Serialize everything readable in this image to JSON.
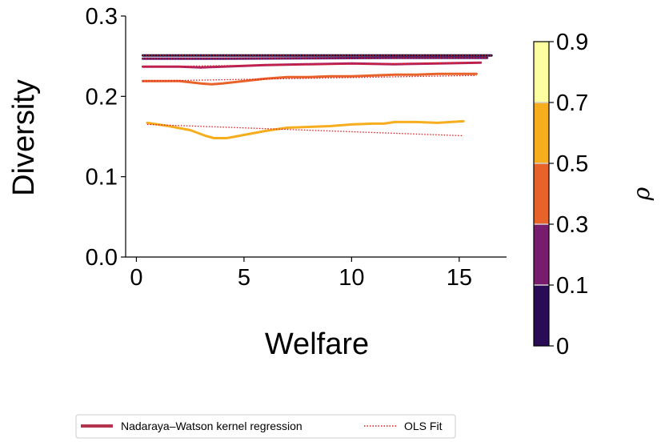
{
  "chart_data": {
    "type": "line",
    "xlabel": "Welfare",
    "ylabel": "Diversity",
    "xlim": [
      -0.5,
      17.2
    ],
    "ylim": [
      0.0,
      0.3
    ],
    "x_ticks": [
      0,
      5,
      10,
      15
    ],
    "x_tick_labels": [
      "0",
      "5",
      "10",
      "15"
    ],
    "y_ticks": [
      0.0,
      0.1,
      0.2,
      0.3
    ],
    "y_tick_labels": [
      "0.0",
      "0.1",
      "0.2",
      "0.3"
    ],
    "grid": false,
    "series": [
      {
        "rho": "0",
        "color": "#1c0a3e",
        "nw": {
          "x": [
            0.3,
            4,
            8,
            12,
            16.5
          ],
          "y": [
            0.251,
            0.251,
            0.251,
            0.251,
            0.251
          ]
        },
        "ols": {
          "x": [
            0.3,
            16.5
          ],
          "y": [
            0.251,
            0.251
          ]
        }
      },
      {
        "rho": "0.1",
        "color": "#5c1a6e",
        "nw": {
          "x": [
            0.3,
            4,
            8,
            12,
            16.3
          ],
          "y": [
            0.247,
            0.247,
            0.2475,
            0.248,
            0.248
          ]
        },
        "ols": {
          "x": [
            0.3,
            16.3
          ],
          "y": [
            0.247,
            0.248
          ]
        }
      },
      {
        "rho": "0.3",
        "color": "#b3235c",
        "nw": {
          "x": [
            0.3,
            2,
            3,
            4,
            6,
            8,
            10,
            12,
            14,
            16
          ],
          "y": [
            0.237,
            0.237,
            0.236,
            0.237,
            0.239,
            0.24,
            0.241,
            0.24,
            0.241,
            0.242
          ]
        },
        "ols": {
          "x": [
            0.3,
            16
          ],
          "y": [
            0.237,
            0.242
          ]
        }
      },
      {
        "rho": "0.5",
        "color": "#e8632a",
        "nw": {
          "x": [
            0.3,
            1,
            2,
            3,
            3.5,
            4,
            5,
            6,
            7,
            8,
            9,
            10,
            11,
            12,
            13,
            14,
            15,
            15.8
          ],
          "y": [
            0.219,
            0.219,
            0.219,
            0.216,
            0.215,
            0.216,
            0.219,
            0.222,
            0.224,
            0.224,
            0.225,
            0.225,
            0.226,
            0.227,
            0.227,
            0.228,
            0.228,
            0.228
          ]
        },
        "ols": {
          "x": [
            0.3,
            15.8
          ],
          "y": [
            0.219,
            0.226
          ]
        }
      },
      {
        "rho": "0.7",
        "color": "#f6ad1e",
        "nw": {
          "x": [
            0.5,
            1.5,
            2.5,
            3.2,
            3.6,
            4.2,
            5,
            6,
            7,
            8,
            9,
            10,
            11,
            11.5,
            12,
            13,
            14,
            15.2
          ],
          "y": [
            0.167,
            0.163,
            0.158,
            0.151,
            0.148,
            0.148,
            0.152,
            0.157,
            0.161,
            0.162,
            0.163,
            0.165,
            0.166,
            0.166,
            0.168,
            0.168,
            0.167,
            0.169
          ]
        },
        "ols": {
          "x": [
            0.5,
            15.2
          ],
          "y": [
            0.165,
            0.151
          ]
        }
      }
    ],
    "colorbar": {
      "label": "ρ",
      "boundaries": [
        0,
        0.1,
        0.3,
        0.5,
        0.7,
        0.9
      ],
      "tick_labels": [
        "0",
        "0.1",
        "0.3",
        "0.5",
        "0.7",
        "0.9"
      ],
      "colors": [
        "#2a0c56",
        "#781c6d",
        "#e8632a",
        "#f6ad1e",
        "#fcfe9f"
      ]
    },
    "legend": {
      "placement": "bottom",
      "entries": [
        {
          "label": "Nadaraya–Watson kernel regression",
          "style": "solid",
          "color": "#b3344f"
        },
        {
          "label": "OLS Fit",
          "style": "dotted",
          "color": "#e31a1c"
        }
      ]
    },
    "ols_color": "#e31a1c"
  }
}
